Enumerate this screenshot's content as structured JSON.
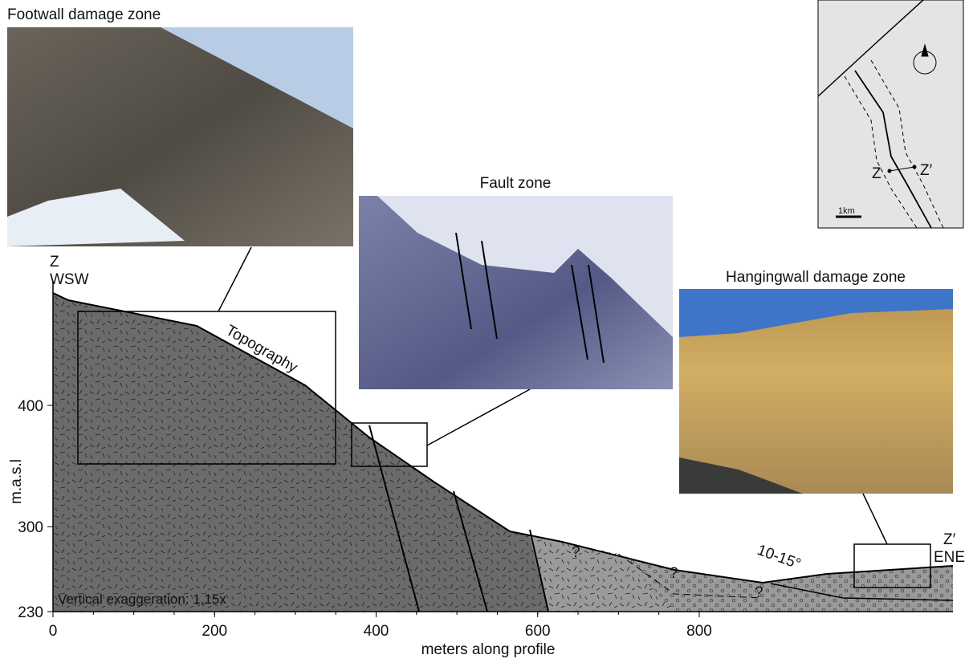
{
  "photos": {
    "footwall": "Footwall damage zone",
    "fault": "Fault zone",
    "hangingwall": "Hangingwall damage zone"
  },
  "profile": {
    "start_label": "Z",
    "start_dir": "WSW",
    "end_label": "Z′",
    "end_dir": "ENE",
    "topography": "Topography",
    "exaggeration": "Vertical exaggeration: 1,15x",
    "dip": "10-15°",
    "unknowns": [
      "?",
      "?",
      "?"
    ]
  },
  "axes": {
    "x_label": "meters along profile",
    "y_label": "m.a.s.l",
    "x_ticks": [
      0,
      200,
      400,
      600,
      800
    ],
    "y_ticks": [
      230,
      300,
      400
    ]
  },
  "map": {
    "left": "Z",
    "right": "Z′",
    "scale": "1km"
  }
}
